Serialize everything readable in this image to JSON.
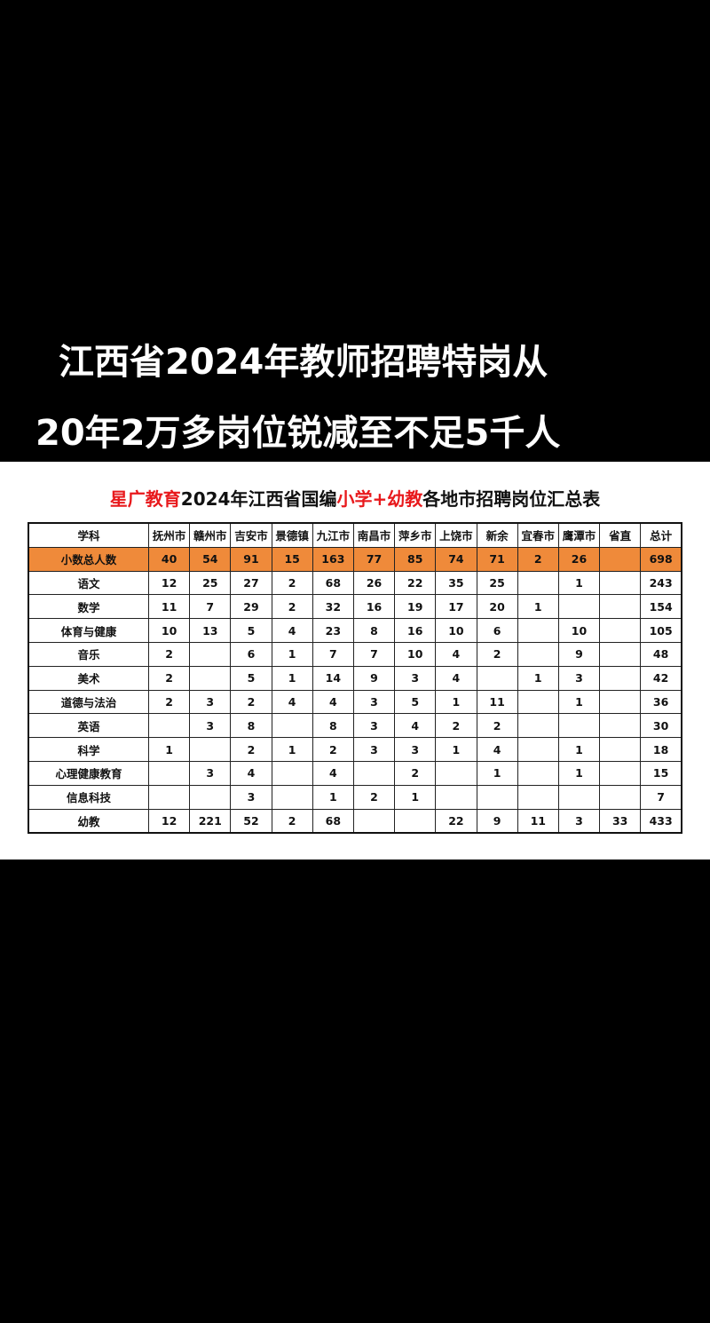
{
  "headline": {
    "line1": "江西省2024年教师招聘特岗从",
    "line2": "20年2万多岗位锐减至不足5千人"
  },
  "table_title": {
    "part1": "星广教育",
    "part2": "2024年江西省国编",
    "part3": "小学+幼教",
    "part4": "各地市招聘岗位汇总表"
  },
  "colors": {
    "accent_red": "#e8191c",
    "highlight_row": "#ef8a3a"
  },
  "table": {
    "headers": [
      "学科",
      "抚州市",
      "赣州市",
      "吉安市",
      "景德镇",
      "九江市",
      "南昌市",
      "萍乡市",
      "上饶市",
      "新余",
      "宜春市",
      "鹰潭市",
      "省直",
      "总计"
    ],
    "rows": [
      [
        "小数总人数",
        "40",
        "54",
        "91",
        "15",
        "163",
        "77",
        "85",
        "74",
        "71",
        "2",
        "26",
        "",
        "698"
      ],
      [
        "语文",
        "12",
        "25",
        "27",
        "2",
        "68",
        "26",
        "22",
        "35",
        "25",
        "",
        "1",
        "",
        "243"
      ],
      [
        "数学",
        "11",
        "7",
        "29",
        "2",
        "32",
        "16",
        "19",
        "17",
        "20",
        "1",
        "",
        "",
        "154"
      ],
      [
        "体育与健康",
        "10",
        "13",
        "5",
        "4",
        "23",
        "8",
        "16",
        "10",
        "6",
        "",
        "10",
        "",
        "105"
      ],
      [
        "音乐",
        "2",
        "",
        "6",
        "1",
        "7",
        "7",
        "10",
        "4",
        "2",
        "",
        "9",
        "",
        "48"
      ],
      [
        "美术",
        "2",
        "",
        "5",
        "1",
        "14",
        "9",
        "3",
        "4",
        "",
        "1",
        "3",
        "",
        "42"
      ],
      [
        "道德与法治",
        "2",
        "3",
        "2",
        "4",
        "4",
        "3",
        "5",
        "1",
        "11",
        "",
        "1",
        "",
        "36"
      ],
      [
        "英语",
        "",
        "3",
        "8",
        "",
        "8",
        "3",
        "4",
        "2",
        "2",
        "",
        "",
        "",
        "30"
      ],
      [
        "科学",
        "1",
        "",
        "2",
        "1",
        "2",
        "3",
        "3",
        "1",
        "4",
        "",
        "1",
        "",
        "18"
      ],
      [
        "心理健康教育",
        "",
        "3",
        "4",
        "",
        "4",
        "",
        "2",
        "",
        "1",
        "",
        "1",
        "",
        "15"
      ],
      [
        "信息科技",
        "",
        "",
        "3",
        "",
        "1",
        "2",
        "1",
        "",
        "",
        "",
        "",
        "",
        "7"
      ],
      [
        "幼教",
        "12",
        "221",
        "52",
        "2",
        "68",
        "",
        "",
        "22",
        "9",
        "11",
        "3",
        "33",
        "433"
      ]
    ]
  }
}
